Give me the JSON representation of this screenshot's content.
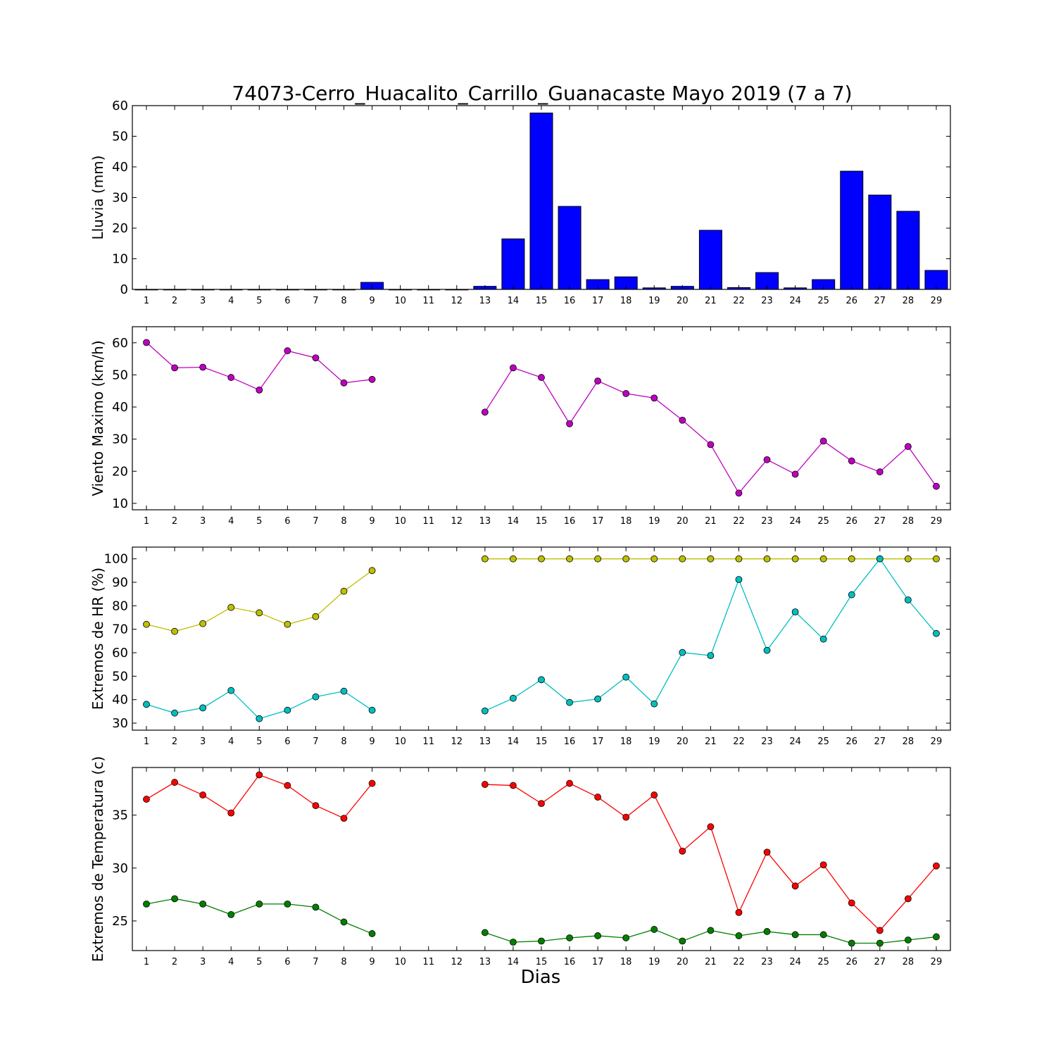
{
  "chart_data": {
    "title": "74073-Cerro_Huacalito_Carrillo_Guanacaste Mayo 2019  (7 a 7)",
    "xlabel": "Dias",
    "categories": [
      "1",
      "2",
      "3",
      "4",
      "5",
      "6",
      "7",
      "8",
      "9",
      "10",
      "11",
      "12",
      "13",
      "14",
      "15",
      "16",
      "17",
      "18",
      "19",
      "20",
      "21",
      "22",
      "23",
      "24",
      "25",
      "26",
      "27",
      "28",
      "29"
    ],
    "panels": [
      {
        "type": "bar",
        "ylabel": "Lluvia (mm)",
        "ylim": [
          0,
          60
        ],
        "yticks": [
          0,
          10,
          20,
          30,
          40,
          50,
          60
        ],
        "series": [
          {
            "color": "#0000ff",
            "values": [
              0,
              0,
              0,
              0,
              0,
              0,
              0,
              0,
              2.3,
              0,
              0,
              0,
              1.0,
              16.5,
              57.6,
              27.1,
              3.2,
              4.1,
              0.5,
              1.0,
              19.3,
              0.6,
              5.5,
              0.5,
              3.2,
              38.6,
              30.8,
              25.5,
              6.2
            ]
          }
        ]
      },
      {
        "type": "line",
        "ylabel": "Viento Maximo (km/h)",
        "ylim": [
          8,
          65
        ],
        "yticks": [
          10,
          20,
          30,
          40,
          50,
          60
        ],
        "series": [
          {
            "color": "#bf00bf",
            "values": [
              60.1,
              52.2,
              52.4,
              49.2,
              45.3,
              57.5,
              55.3,
              47.5,
              48.6,
              null,
              null,
              null,
              38.4,
              52.2,
              49.2,
              34.8,
              48.1,
              44.2,
              42.8,
              35.9,
              28.3,
              13.2,
              23.6,
              19.1,
              29.4,
              23.2,
              19.8,
              27.7,
              15.3
            ]
          }
        ]
      },
      {
        "type": "line",
        "ylabel": "Extremos de HR (%)",
        "ylim": [
          27,
          105
        ],
        "yticks": [
          30,
          40,
          50,
          60,
          70,
          80,
          90,
          100
        ],
        "series": [
          {
            "color": "#bfbf00",
            "values": [
              72.1,
              69.1,
              72.4,
              79.3,
              77.0,
              72.1,
              75.4,
              86.2,
              95.0,
              null,
              null,
              null,
              100,
              100,
              100,
              100,
              100,
              100,
              100,
              100,
              100,
              100,
              100,
              100,
              100,
              100,
              100,
              100,
              100
            ]
          },
          {
            "color": "#00bfbf",
            "values": [
              38.0,
              34.3,
              36.5,
              43.9,
              31.9,
              35.5,
              41.2,
              43.6,
              35.5,
              null,
              null,
              null,
              35.2,
              40.6,
              48.5,
              38.8,
              40.3,
              49.6,
              38.2,
              60.1,
              58.8,
              91.2,
              61.0,
              77.4,
              65.8,
              84.7,
              100,
              82.5,
              68.2
            ]
          }
        ]
      },
      {
        "type": "line",
        "ylabel": "Extremos de Temperatura (c)",
        "ylim": [
          22.2,
          39.5
        ],
        "yticks": [
          25,
          30,
          35
        ],
        "series": [
          {
            "color": "#ff0000",
            "values": [
              36.5,
              38.1,
              36.9,
              35.2,
              38.8,
              37.8,
              35.9,
              34.7,
              38.0,
              null,
              null,
              null,
              37.9,
              37.8,
              36.1,
              38.0,
              36.7,
              34.8,
              36.9,
              31.6,
              33.9,
              25.8,
              31.5,
              28.3,
              30.3,
              26.7,
              24.1,
              27.1,
              30.2
            ]
          },
          {
            "color": "#008000",
            "values": [
              26.6,
              27.1,
              26.6,
              25.6,
              26.6,
              26.6,
              26.3,
              24.9,
              23.8,
              null,
              null,
              null,
              23.9,
              23.0,
              23.1,
              23.4,
              23.6,
              23.4,
              24.2,
              23.1,
              24.1,
              23.6,
              24.0,
              23.7,
              23.7,
              22.9,
              22.9,
              23.2,
              23.5
            ]
          }
        ]
      }
    ]
  }
}
